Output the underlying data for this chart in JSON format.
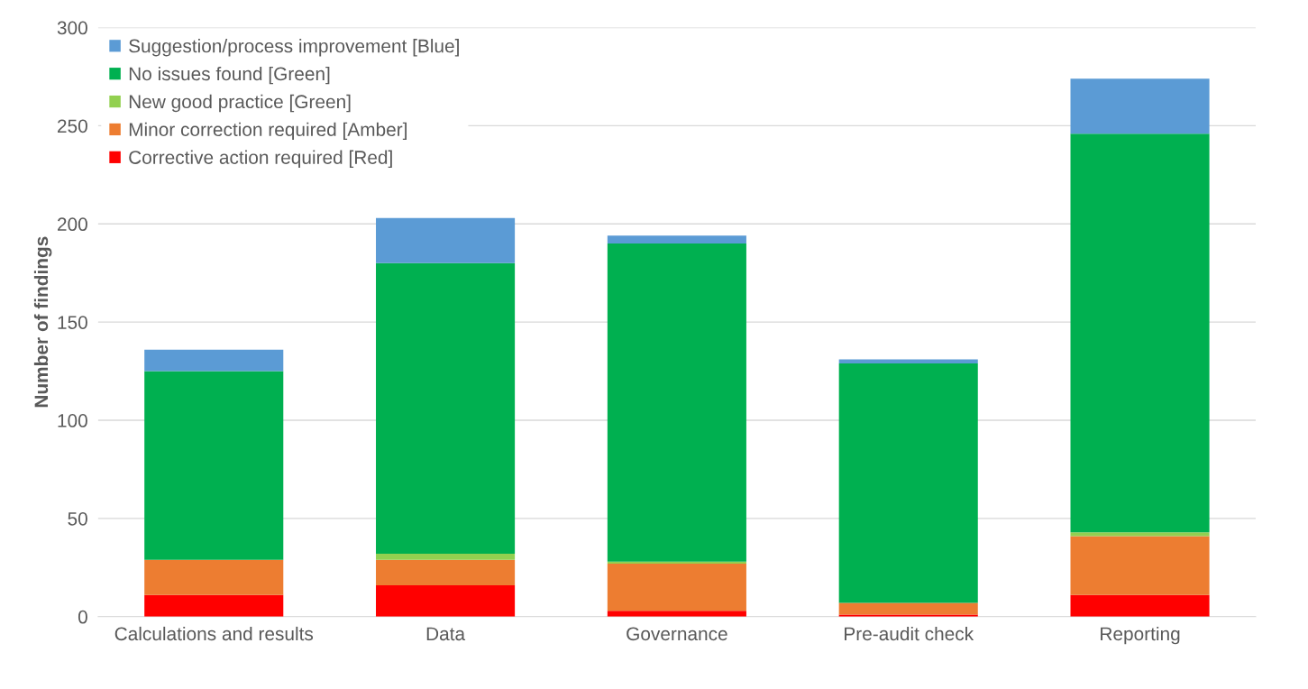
{
  "chart_data": {
    "type": "bar",
    "stacked": true,
    "ylabel": "Number of findings",
    "categories": [
      "Calculations and results",
      "Data",
      "Governance",
      "Pre-audit check",
      "Reporting"
    ],
    "series": [
      {
        "name": "Corrective action required [Red]",
        "color": "#ff0000",
        "values": [
          11,
          16,
          3,
          1,
          11
        ]
      },
      {
        "name": "Minor correction required [Amber]",
        "color": "#ed7d31",
        "values": [
          18,
          13,
          24,
          6,
          30
        ]
      },
      {
        "name": "New good practice [Green]",
        "color": "#92d050",
        "values": [
          0,
          3,
          1,
          0,
          2
        ]
      },
      {
        "name": "No issues found [Green]",
        "color": "#00b050",
        "values": [
          96,
          148,
          162,
          122,
          203
        ]
      },
      {
        "name": "Suggestion/process improvement [Blue]",
        "color": "#5b9bd5",
        "values": [
          11,
          23,
          4,
          2,
          28
        ]
      }
    ],
    "ylim": [
      0,
      300
    ],
    "yticks": [
      0,
      50,
      100,
      150,
      200,
      250,
      300
    ],
    "grid": "y",
    "legend": "top left"
  }
}
